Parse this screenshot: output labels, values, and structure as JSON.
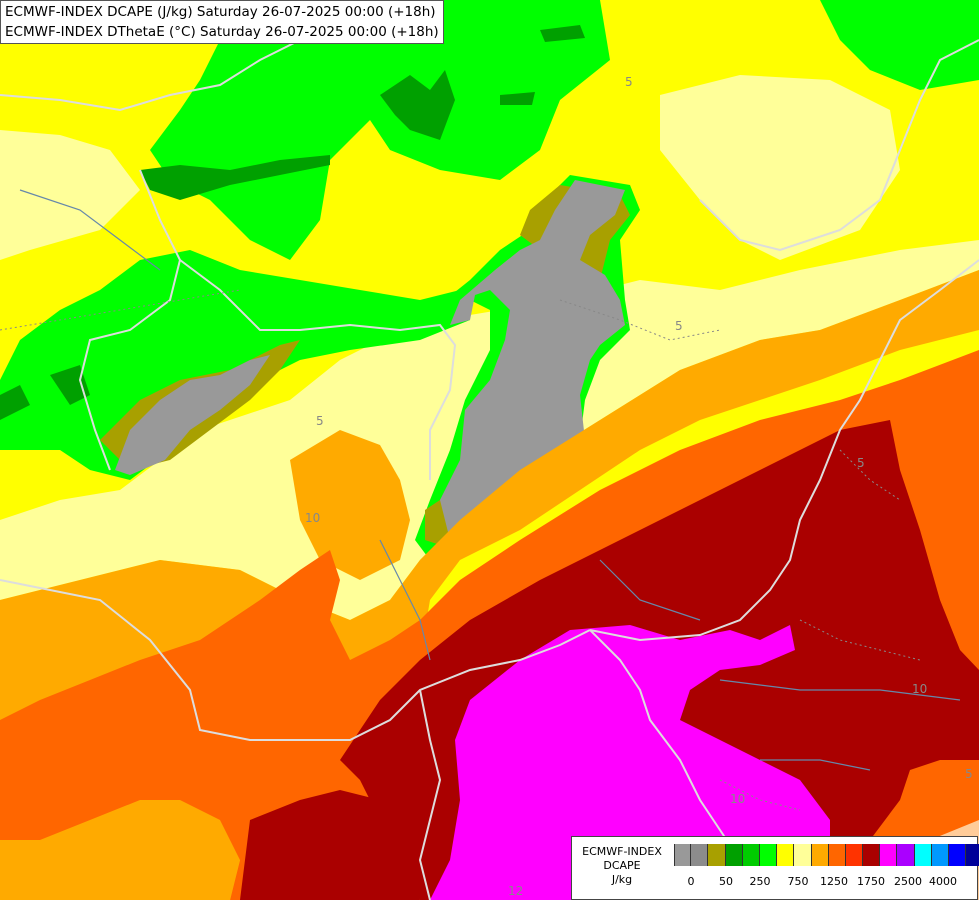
{
  "title_lines": [
    "ECMWF-INDEX DCAPE (J/kg) Saturday 26-07-2025 00:00 (+18h)",
    "ECMWF-INDEX DThetaE (°C) Saturday 26-07-2025 00:00 (+18h)"
  ],
  "legend": {
    "model": "ECMWF-INDEX",
    "parameter": "DCAPE",
    "unit": "J/kg",
    "colors": [
      "#999999",
      "#8c8c8c",
      "#a8a000",
      "#00a000",
      "#00cc00",
      "#00ff00",
      "#ffff00",
      "#ffff99",
      "#ffaa00",
      "#ff6600",
      "#ff3300",
      "#aa0000",
      "#ff00ff",
      "#aa00ff",
      "#00ffff",
      "#0099ff",
      "#0000ff",
      "#000099"
    ],
    "tick_labels": [
      "0",
      "50",
      "250",
      "750",
      "1250",
      "1750",
      "2500",
      "4000"
    ]
  },
  "contour_labels": [
    "5",
    "5",
    "5",
    "5",
    "10",
    "10",
    "10",
    "5",
    "10",
    "12"
  ],
  "map_colors": {
    "ocean_yellow": "#ffff00",
    "light_yellow": "#ffff99",
    "green": "#00ff00",
    "dark_green": "#00a000",
    "olive": "#a8a000",
    "grey": "#999999",
    "orange": "#ffaa00",
    "dark_orange": "#ff6600",
    "dark_red": "#aa0000",
    "magenta": "#ff00ff",
    "peach": "#ffcc99",
    "border": "#dddddd",
    "river": "#6688aa"
  }
}
